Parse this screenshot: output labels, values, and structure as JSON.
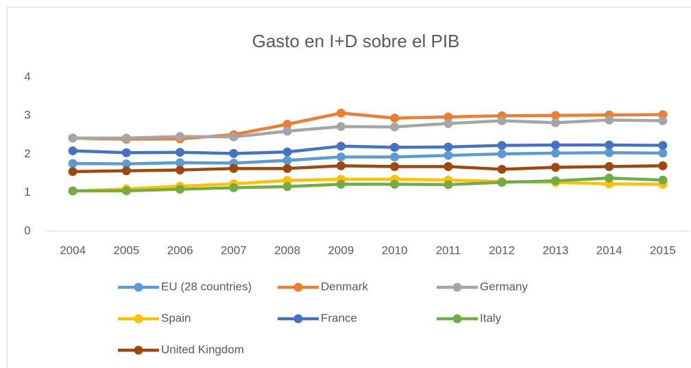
{
  "chart_data": {
    "type": "line",
    "title": "Gasto en I+D sobre el PIB",
    "categories": [
      "2004",
      "2005",
      "2006",
      "2007",
      "2008",
      "2009",
      "2010",
      "2011",
      "2012",
      "2013",
      "2014",
      "2015"
    ],
    "series": [
      {
        "name": "EU (28 countries)",
        "color": "#5b9bd5",
        "values": [
          1.76,
          1.75,
          1.78,
          1.77,
          1.84,
          1.93,
          1.93,
          1.97,
          2.01,
          2.03,
          2.04,
          2.03
        ]
      },
      {
        "name": "Denmark",
        "color": "#ed7d31",
        "values": [
          2.42,
          2.39,
          2.4,
          2.51,
          2.78,
          3.07,
          2.94,
          2.97,
          3.0,
          3.01,
          3.02,
          3.03
        ]
      },
      {
        "name": "Germany",
        "color": "#a5a5a5",
        "values": [
          2.42,
          2.42,
          2.46,
          2.45,
          2.6,
          2.72,
          2.71,
          2.8,
          2.87,
          2.82,
          2.89,
          2.87
        ]
      },
      {
        "name": "Spain",
        "color": "#ffc000",
        "values": [
          1.04,
          1.1,
          1.17,
          1.23,
          1.32,
          1.35,
          1.35,
          1.33,
          1.29,
          1.27,
          1.23,
          1.22
        ]
      },
      {
        "name": "France",
        "color": "#4472c4",
        "values": [
          2.09,
          2.04,
          2.05,
          2.02,
          2.06,
          2.21,
          2.18,
          2.19,
          2.23,
          2.24,
          2.24,
          2.23
        ]
      },
      {
        "name": "Italy",
        "color": "#70ad47",
        "values": [
          1.05,
          1.05,
          1.09,
          1.13,
          1.16,
          1.22,
          1.22,
          1.21,
          1.27,
          1.31,
          1.38,
          1.33
        ]
      },
      {
        "name": "United Kingdom",
        "color": "#9e480e",
        "values": [
          1.55,
          1.57,
          1.59,
          1.63,
          1.63,
          1.7,
          1.68,
          1.68,
          1.61,
          1.66,
          1.68,
          1.7
        ]
      }
    ],
    "ylim": [
      0,
      4
    ],
    "yticks": [
      0,
      1,
      2,
      3,
      4
    ],
    "grid": false,
    "legend": "bottom"
  }
}
